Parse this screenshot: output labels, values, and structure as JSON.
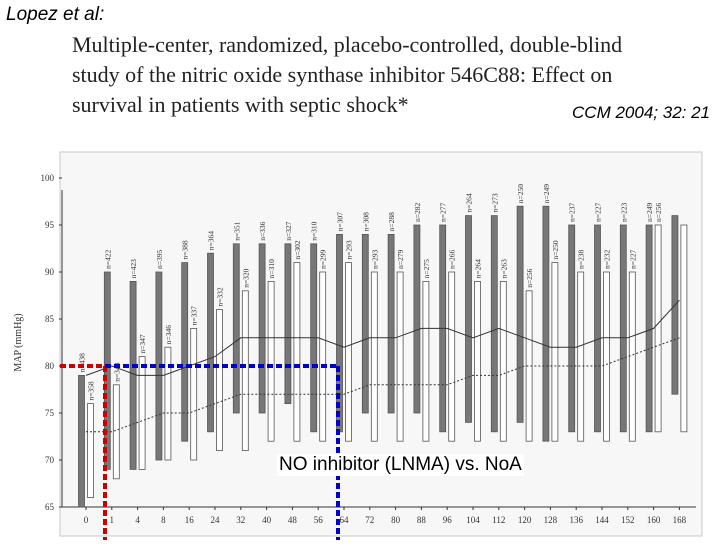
{
  "header": {
    "author": "Lopez et al:",
    "title_line1": "Multiple-center, randomized, placebo-controlled, double-blind",
    "title_line2": "study of the nitric oxide synthase inhibitor 546C88: Effect on",
    "title_line3": "survival in patients with septic shock*",
    "citation": "CCM 2004; 32: 21"
  },
  "annotation": "NO inhibitor (LNMA) vs. NoA",
  "colors": {
    "highlight_red": "#cc0000",
    "highlight_blue": "#0000cc",
    "bar_dark": "#777777",
    "bar_light": "#ffffff"
  },
  "chart_data": {
    "type": "bar",
    "ylabel": "MAP (mmHg)",
    "ylim": [
      65,
      100
    ],
    "yticks": [
      65,
      70,
      75,
      80,
      85,
      90,
      95,
      100
    ],
    "categories": [
      "0",
      "1",
      "4",
      "8",
      "16",
      "24",
      "32",
      "40",
      "48",
      "56",
      "64",
      "72",
      "80",
      "88",
      "96",
      "104",
      "112",
      "120",
      "128",
      "136",
      "144",
      "152",
      "160",
      "168"
    ],
    "series": [
      {
        "style": "dark",
        "ranges": [
          [
            65,
            79
          ],
          [
            69,
            90
          ],
          [
            69,
            89
          ],
          [
            70,
            90
          ],
          [
            72,
            91
          ],
          [
            73,
            92
          ],
          [
            75,
            93
          ],
          [
            75,
            93
          ],
          [
            76,
            93
          ],
          [
            73,
            93
          ],
          [
            73,
            94
          ],
          [
            75,
            94
          ],
          [
            75,
            94
          ],
          [
            75,
            95
          ],
          [
            73,
            95
          ],
          [
            74,
            96
          ],
          [
            73,
            96
          ],
          [
            74,
            97
          ],
          [
            72,
            97
          ],
          [
            73,
            95
          ],
          [
            73,
            95
          ],
          [
            73,
            95
          ],
          [
            73,
            95
          ],
          [
            77,
            96
          ]
        ],
        "n": [
          "n=438",
          "n=422",
          "n=423",
          "n=395",
          "n=388",
          "n=364",
          "n=351",
          "n=336",
          "n=327",
          "n=310",
          "n=307",
          "n=308",
          "n=288",
          "n=282",
          "n=277",
          "n=264",
          "n=273",
          "n=250",
          "n=249",
          "n=237",
          "n=227",
          "n=223",
          "n=249",
          ""
        ],
        "mean": [
          79,
          80,
          79,
          79,
          80,
          81,
          83,
          83,
          83,
          83,
          82,
          83,
          83,
          84,
          84,
          83,
          84,
          83,
          82,
          82,
          83,
          83,
          84,
          87
        ]
      },
      {
        "style": "light",
        "ranges": [
          [
            66,
            76
          ],
          [
            68,
            78
          ],
          [
            69,
            81
          ],
          [
            70,
            82
          ],
          [
            70,
            84
          ],
          [
            71,
            86
          ],
          [
            71,
            88
          ],
          [
            72,
            89
          ],
          [
            72,
            91
          ],
          [
            72,
            90
          ],
          [
            72,
            91
          ],
          [
            72,
            90
          ],
          [
            72,
            90
          ],
          [
            72,
            89
          ],
          [
            72,
            90
          ],
          [
            72,
            89
          ],
          [
            72,
            89
          ],
          [
            72,
            88
          ],
          [
            72,
            91
          ],
          [
            72,
            90
          ],
          [
            72,
            90
          ],
          [
            72,
            90
          ],
          [
            73,
            95
          ],
          [
            73,
            95
          ]
        ],
        "n": [
          "n=358",
          "n=348",
          "n=347",
          "n=346",
          "n=337",
          "n=332",
          "n=320",
          "n=310",
          "n=302",
          "n=299",
          "n=293",
          "n=293",
          "n=279",
          "n=275",
          "n=266",
          "n=264",
          "n=263",
          "n=256",
          "n=250",
          "n=238",
          "n=232",
          "n=227",
          "n=256",
          ""
        ],
        "mean": [
          73,
          73,
          74,
          75,
          75,
          76,
          77,
          77,
          77,
          77,
          77,
          78,
          78,
          78,
          78,
          79,
          79,
          80,
          80,
          80,
          80,
          81,
          82,
          83
        ]
      }
    ]
  }
}
